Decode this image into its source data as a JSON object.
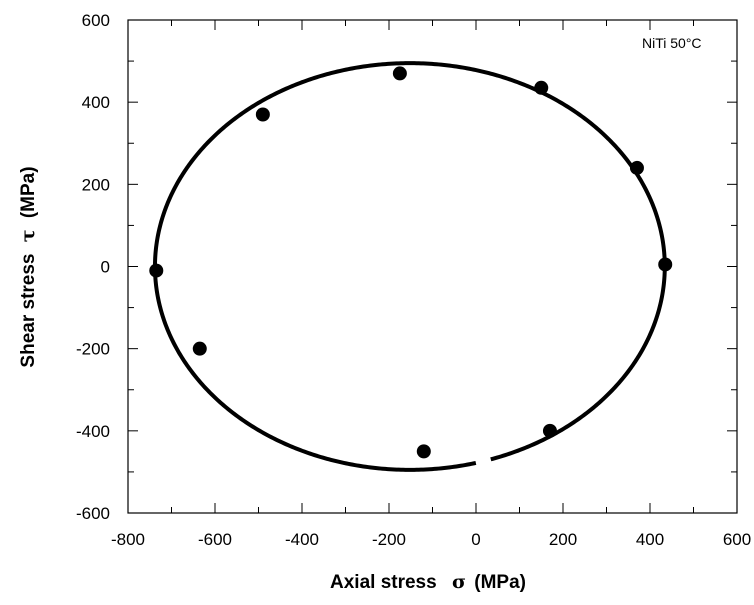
{
  "chart_data": {
    "type": "scatter",
    "annotation": "NiTi 50°C",
    "xlabel_prefix": "Axial stress",
    "xlabel_symbol": "σ",
    "xlabel_unit": "(MPa)",
    "ylabel_prefix": "Shear stress",
    "ylabel_symbol": "τ",
    "ylabel_unit": "(MPa)",
    "xlim": [
      -800,
      600
    ],
    "ylim": [
      -600,
      600
    ],
    "x_ticks": [
      -800,
      -600,
      -400,
      -200,
      0,
      200,
      400,
      600
    ],
    "y_ticks": [
      -600,
      -400,
      -200,
      0,
      200,
      400,
      600
    ],
    "x_tick_labels": [
      "-800",
      "-600",
      "-400",
      "-200",
      "0",
      "200",
      "400",
      "600"
    ],
    "y_tick_labels": [
      "-600",
      "-400",
      "-200",
      "0",
      "200",
      "400",
      "600"
    ],
    "grid": false,
    "series": [
      {
        "marker": "filled-circle",
        "x": [
          -175,
          150,
          370,
          435,
          170,
          -120,
          -635,
          -735,
          -490
        ],
        "y": [
          470,
          435,
          240,
          5,
          -400,
          -450,
          -200,
          -10,
          370
        ]
      }
    ],
    "curve": {
      "shape": "ellipse",
      "center": [
        -152,
        0
      ],
      "semi_axis_x": 586,
      "semi_axis_y": 495,
      "gap_x_range": [
        0,
        30
      ]
    },
    "colors": {
      "marker": "#000000",
      "curve": "#000000",
      "axis": "#000000"
    }
  }
}
